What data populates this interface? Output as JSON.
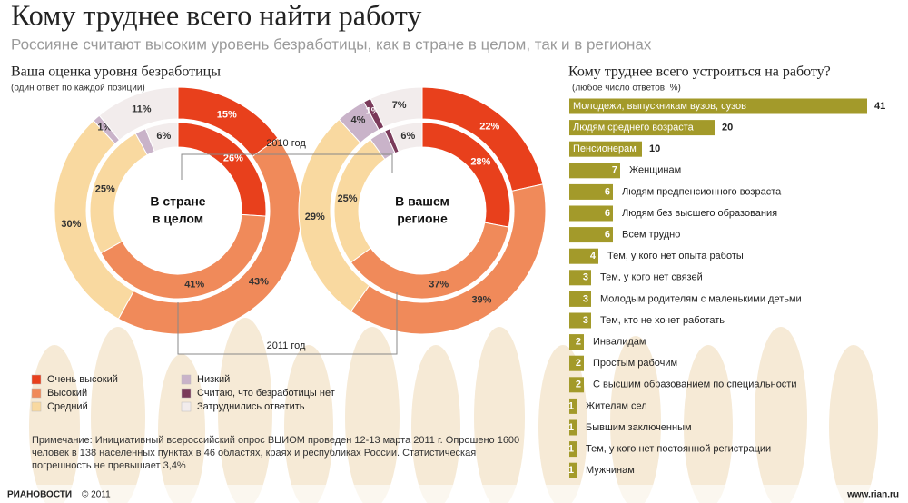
{
  "title": "Кому труднее всего найти работу",
  "subtitle": "Россияне считают высоким уровень безработицы, как в стране в целом, так и в регионах",
  "section_title": "Ваша оценка уровня безработицы",
  "section_subtitle": "(один ответ по каждой позиции)",
  "ring_labels": [
    "2010 год",
    "2011 год"
  ],
  "legend": {
    "labels": [
      "Очень высокий",
      "Высокий",
      "Средний",
      "Низкий",
      "Считаю, что безработицы нет",
      "Затруднились ответить"
    ],
    "colors": [
      "#e8401c",
      "#f08a5a",
      "#f9d9a0",
      "#c9b3c9",
      "#7a3a5a",
      "#f2ecec"
    ]
  },
  "chart_data": [
    {
      "type": "donut",
      "center_label": [
        "В стране",
        "в целом"
      ],
      "series": [
        {
          "values": [
            26,
            41,
            25,
            2,
            null,
            6
          ],
          "value_labels": [
            "26%",
            "41%",
            "25%",
            "2%",
            null,
            "6%"
          ]
        },
        {
          "values": [
            15,
            43,
            30,
            1,
            null,
            11
          ],
          "value_labels": [
            "15%",
            "43%",
            "30%",
            "1%",
            null,
            "11%"
          ]
        }
      ]
    },
    {
      "type": "donut",
      "center_label": [
        "В вашем",
        "регионе"
      ],
      "series": [
        {
          "values": [
            28,
            37,
            25,
            3,
            1,
            6
          ],
          "value_labels": [
            "28%",
            "37%",
            "25%",
            "3%",
            "1%",
            "6%"
          ]
        },
        {
          "values": [
            22,
            39,
            29,
            4,
            1,
            7
          ],
          "value_labels": [
            "22%",
            "39%",
            "29%",
            "4%",
            "1%",
            "7%"
          ]
        }
      ]
    },
    {
      "type": "hbar",
      "title": "Кому труднее всего устроиться на работу?",
      "subtitle": "(любое число ответов, %)",
      "color": "#a39a2a",
      "categories": [
        "Молодежи, выпускникам вузов, сузов",
        "Людям среднего возраста",
        "Пенсионерам",
        "Женщинам",
        "Людям предпенсионного возраста",
        "Людям без высшего образования",
        "Всем трудно",
        "Тем, у кого нет опыта работы",
        "Тем, у кого нет связей",
        "Молодым родителям с маленькими детьми",
        "Тем, кто не хочет работать",
        "Инвалидам",
        "Простым рабочим",
        "С высшим образованием по специальности",
        "Жителям сел",
        "Бывшим заключенным",
        "Тем, у кого нет постоянной регистрации",
        "Мужчинам"
      ],
      "values": [
        41,
        20,
        10,
        7,
        6,
        6,
        6,
        4,
        3,
        3,
        3,
        2,
        2,
        2,
        1,
        1,
        1,
        1
      ]
    }
  ],
  "note": "Примечание: Инициативный всероссийский опрос ВЦИОМ проведен 12-13 марта 2011 г. Опрошено 1600 человек в 138 населенных пунктах в 46 областях, краях и республиках России. Статистическая погрешность не превышает 3,4%",
  "footer": {
    "logo": "РИАНОВОСТИ",
    "copyright": "© 2011",
    "url": "www.rian.ru"
  }
}
